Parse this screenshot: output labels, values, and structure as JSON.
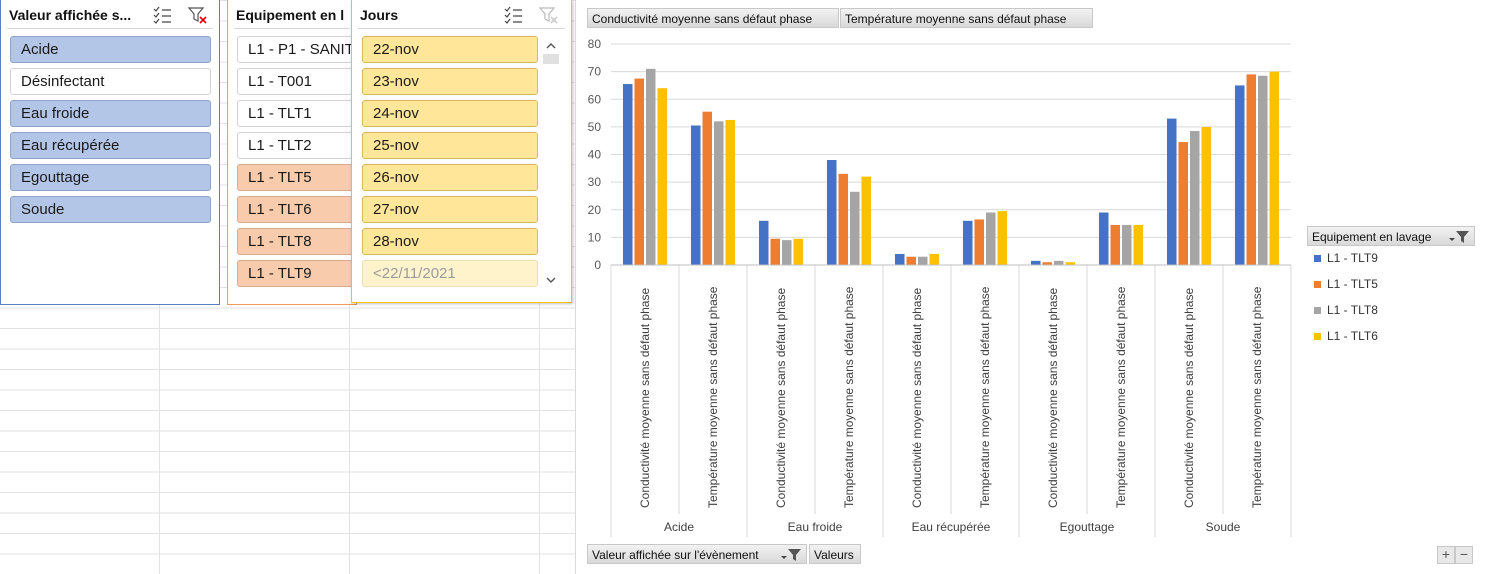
{
  "slicer1": {
    "title": "Valeur affichée s...",
    "items": [
      {
        "label": "Acide",
        "state": "selected"
      },
      {
        "label": "Désinfectant",
        "state": "unselected"
      },
      {
        "label": "Eau froide",
        "state": "selected"
      },
      {
        "label": "Eau récupérée",
        "state": "selected"
      },
      {
        "label": "Egouttage",
        "state": "selected"
      },
      {
        "label": "Soude",
        "state": "selected"
      }
    ],
    "icons": [
      "multi-select-icon",
      "clear-filter-icon"
    ],
    "color": "#5b7fbf"
  },
  "slicer2": {
    "title": "Equipement en l",
    "items": [
      {
        "label": "L1 - P1 - SANIT",
        "state": "unselected"
      },
      {
        "label": "L1 - T001",
        "state": "unselected"
      },
      {
        "label": "L1 - TLT1",
        "state": "unselected"
      },
      {
        "label": "L1 - TLT2",
        "state": "unselected"
      },
      {
        "label": "L1 - TLT5",
        "state": "selected"
      },
      {
        "label": "L1 - TLT6",
        "state": "selected"
      },
      {
        "label": "L1 - TLT8",
        "state": "selected"
      },
      {
        "label": "L1 - TLT9",
        "state": "selected"
      }
    ],
    "color": "#ed7d31"
  },
  "slicer3": {
    "title": "Jours",
    "items": [
      {
        "label": "22-nov",
        "state": "selected"
      },
      {
        "label": "23-nov",
        "state": "selected"
      },
      {
        "label": "24-nov",
        "state": "selected"
      },
      {
        "label": "25-nov",
        "state": "selected"
      },
      {
        "label": "26-nov",
        "state": "selected"
      },
      {
        "label": "27-nov",
        "state": "selected"
      },
      {
        "label": "28-nov",
        "state": "selected"
      },
      {
        "label": "<22/11/2021",
        "state": "disabled"
      }
    ],
    "icons": [
      "multi-select-icon",
      "clear-filter-icon"
    ],
    "color": "#ffc000"
  },
  "chart_buttons": {
    "top": [
      "Conductivité moyenne sans défaut phase",
      "Température moyenne sans défaut phase"
    ],
    "axis": "Valeur affichée sur l'évènement",
    "values": "Valeurs",
    "legend_field": "Equipement en lavage"
  },
  "zoom": {
    "plus": "+",
    "minus": "−"
  },
  "chart_data": {
    "type": "bar",
    "ylim": [
      0,
      80
    ],
    "yticks": [
      "0",
      "10",
      "20",
      "30",
      "40",
      "50",
      "60",
      "70",
      "80"
    ],
    "groups": [
      {
        "name": "Acide",
        "subs": [
          "Conductivité moyenne sans défaut phase",
          "Température moyenne sans défaut phase"
        ]
      },
      {
        "name": "Eau froide",
        "subs": [
          "Conductivité moyenne sans défaut phase",
          "Température moyenne sans défaut phase"
        ]
      },
      {
        "name": "Eau récupérée",
        "subs": [
          "Conductivité moyenne sans défaut phase",
          "Température moyenne sans défaut phase"
        ]
      },
      {
        "name": "Egouttage",
        "subs": [
          "Conductivité moyenne sans défaut phase",
          "Température moyenne sans défaut phase"
        ]
      },
      {
        "name": "Soude",
        "subs": [
          "Conductivité moyenne sans défaut phase",
          "Température moyenne sans défaut phase"
        ]
      }
    ],
    "series": [
      {
        "name": "L1 - TLT9",
        "color": "#4472c4",
        "values": [
          65.5,
          50.5,
          16,
          38,
          4,
          16,
          1.5,
          19,
          53,
          65
        ]
      },
      {
        "name": "L1 - TLT5",
        "color": "#ed7d31",
        "values": [
          67.5,
          55.5,
          9.5,
          33,
          3,
          16.5,
          1,
          14.5,
          44.5,
          69
        ]
      },
      {
        "name": "L1 - TLT8",
        "color": "#a5a5a5",
        "values": [
          71,
          52,
          9,
          26.5,
          3,
          19,
          1.5,
          14.5,
          48.5,
          68.5
        ]
      },
      {
        "name": "L1 - TLT6",
        "color": "#ffc000",
        "values": [
          64,
          52.5,
          9.5,
          32,
          4,
          19.5,
          1,
          14.5,
          50,
          70
        ]
      }
    ],
    "legend_position": "right"
  }
}
